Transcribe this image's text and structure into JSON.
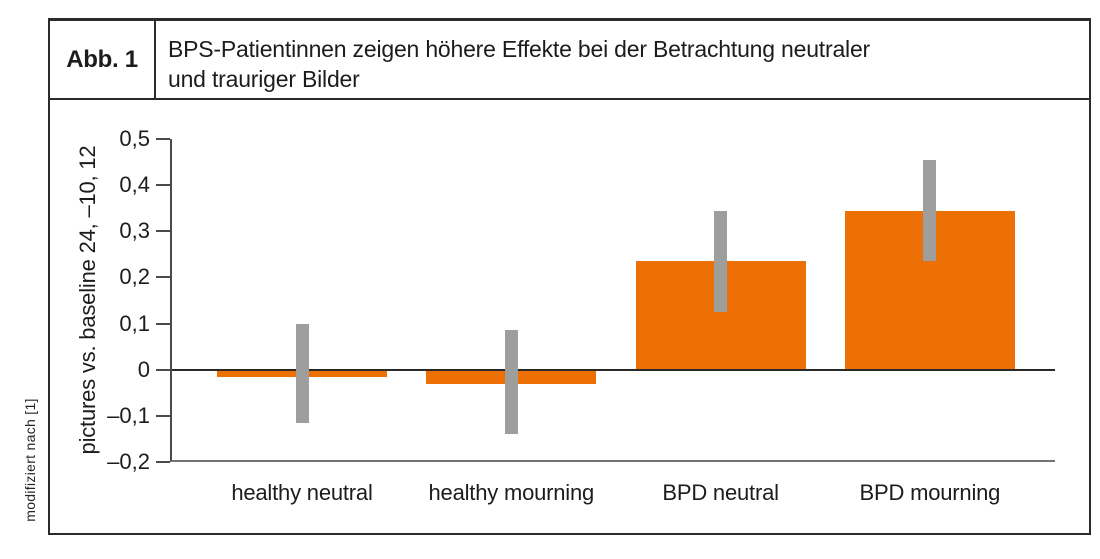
{
  "figure_header": {
    "label": "Abb. 1",
    "title_lines": [
      "BPS-Patientinnen zeigen höhere Effekte bei der Betrachtung neutraler",
      "und trauriger Bilder"
    ]
  },
  "source_note": "modifiziert nach [1]",
  "chart_data": {
    "type": "bar",
    "title": "BPS-Patientinnen zeigen höhere Effekte bei der Betrachtung neutraler und trauriger Bilder",
    "categories": [
      "healthy neutral",
      "healthy mourning",
      "BPD neutral",
      "BPD mourning"
    ],
    "values": [
      -0.015,
      -0.03,
      0.235,
      0.345
    ],
    "error_low": [
      -0.115,
      -0.14,
      0.125,
      0.235
    ],
    "error_high": [
      0.1,
      0.085,
      0.345,
      0.455
    ],
    "xlabel": "",
    "ylabel": "pictures vs. baseline 24, –10, 12",
    "ylim": [
      -0.2,
      0.5
    ],
    "yticks": [
      0.5,
      0.4,
      0.3,
      0.2,
      0.1,
      0,
      -0.1,
      -0.2
    ],
    "ytick_labels": [
      "0,5",
      "0,4",
      "0,3",
      "0,2",
      "0,1",
      "0",
      "–0,1",
      "–0,2"
    ],
    "grid": false,
    "legend": null,
    "bar_color": "#ec7005",
    "error_color": "#9e9e9c"
  }
}
